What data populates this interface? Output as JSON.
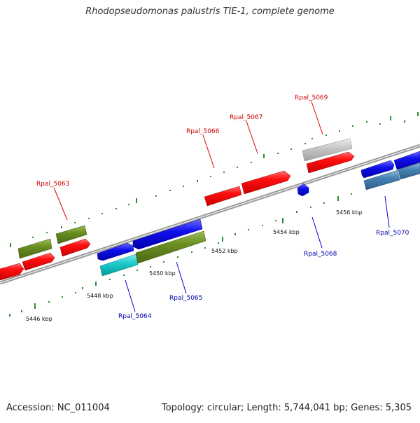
{
  "title": "Rhodopseudomonas palustris TIE-1, complete genome",
  "footer": {
    "accession": "Accession: NC_011004",
    "summary": "Topology: circular; Length: 5,744,041 bp; Genes: 5,305"
  },
  "colors": {
    "red": "#ff0000",
    "olive": "#6b8e23",
    "blue": "#0000ee",
    "cyan": "#00cccc",
    "steel": "#4682b4",
    "gray": "#c0c0c0",
    "backbone": "#888888",
    "tick": "#2e8b2e",
    "label_top": "#cc0000",
    "label_bottom": "#0000aa"
  },
  "scale_labels": [
    "5446 kbp",
    "5448 kbp",
    "5450 kbp",
    "5452 kbp",
    "5454 kbp",
    "5456 kbp"
  ],
  "gene_labels": {
    "top": [
      "Rpal_5063",
      "Rpal_5066",
      "Rpal_5067",
      "Rpal_5069"
    ],
    "bottom": [
      "Rpal_5064",
      "Rpal_5065",
      "Rpal_5068",
      "Rpal_5070"
    ]
  }
}
